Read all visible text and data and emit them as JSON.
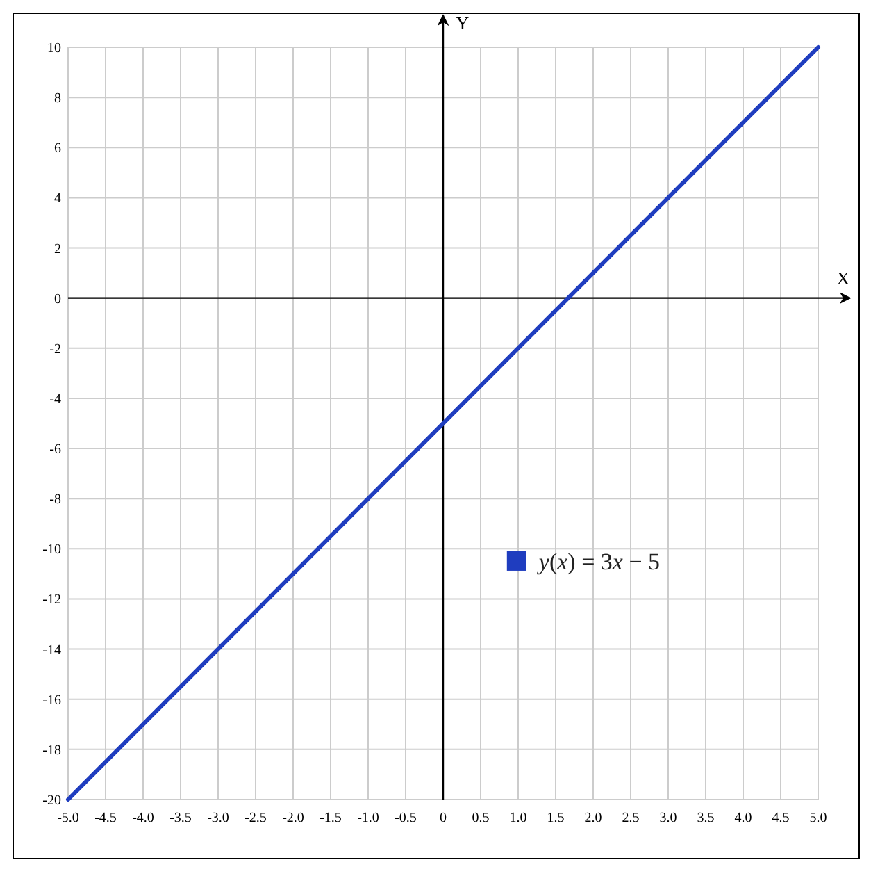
{
  "chart_data": {
    "type": "line",
    "xlabel": "X",
    "ylabel": "Y",
    "x": [
      -5,
      5
    ],
    "series": [
      {
        "name": "y(x) = 3x − 5",
        "color": "#1f3dbf",
        "values": [
          -20,
          10
        ]
      }
    ],
    "xlim": [
      -5,
      5
    ],
    "ylim": [
      -20,
      10
    ],
    "xticks": [
      {
        "value": -5,
        "label": "-5.0"
      },
      -4.5,
      {
        "value": -4,
        "label": "-4.0"
      },
      -3.5,
      {
        "value": -3,
        "label": "-3.0"
      },
      -2.5,
      {
        "value": -2,
        "label": "-2.0"
      },
      -1.5,
      {
        "value": -1,
        "label": "-1.0"
      },
      -0.5,
      0,
      0.5,
      {
        "value": 1,
        "label": "1.0"
      },
      1.5,
      {
        "value": 2,
        "label": "2.0"
      },
      2.5,
      {
        "value": 3,
        "label": "3.0"
      },
      3.5,
      {
        "value": 4,
        "label": "4.0"
      },
      4.5,
      {
        "value": 5,
        "label": "5.0"
      }
    ],
    "yticks": [
      -20,
      -18,
      -16,
      -14,
      -12,
      -10,
      -8,
      -6,
      -4,
      -2,
      0,
      2,
      4,
      6,
      8,
      10
    ],
    "grid": true,
    "legend": "bottom right"
  }
}
